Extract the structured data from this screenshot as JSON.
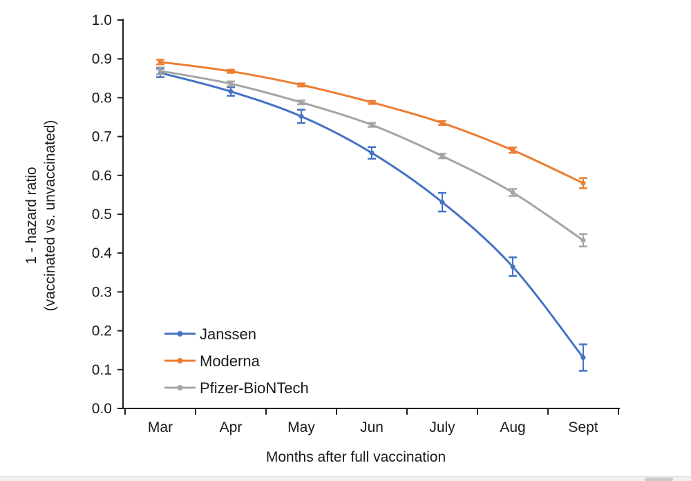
{
  "chart_data": {
    "type": "line",
    "title": "",
    "xlabel": "Months after full vaccination",
    "ylabel_line1": "1 - hazard ratio",
    "ylabel_line2": "(vaccinated vs. unvaccinated)",
    "categories": [
      "Mar",
      "Apr",
      "May",
      "Jun",
      "July",
      "Aug",
      "Sept"
    ],
    "ylim": [
      0.0,
      1.0
    ],
    "ytick_step": 0.1,
    "ytick_labels": [
      "0.0",
      "0.1",
      "0.2",
      "0.3",
      "0.4",
      "0.5",
      "0.6",
      "0.7",
      "0.8",
      "0.9",
      "1.0"
    ],
    "grid": false,
    "legend_position": "inside-lower-left",
    "legend_entries": [
      "Janssen",
      "Moderna",
      "Pfizer-BioNTech"
    ],
    "axis_color": "#1f1f1f",
    "series": [
      {
        "name": "Janssen",
        "color": "#4472C4",
        "values": [
          0.864,
          0.816,
          0.752,
          0.658,
          0.531,
          0.365,
          0.131
        ],
        "errors": [
          0.011,
          0.011,
          0.017,
          0.015,
          0.024,
          0.024,
          0.034
        ]
      },
      {
        "name": "Moderna",
        "color": "#ED7D31",
        "values": [
          0.892,
          0.868,
          0.833,
          0.788,
          0.735,
          0.665,
          0.58
        ],
        "errors": [
          0.006,
          0.004,
          0.004,
          0.004,
          0.005,
          0.007,
          0.013
        ]
      },
      {
        "name": "Pfizer-BioNTech",
        "color": "#A5A5A5",
        "values": [
          0.869,
          0.836,
          0.788,
          0.73,
          0.65,
          0.556,
          0.433
        ],
        "errors": [
          0.009,
          0.006,
          0.005,
          0.005,
          0.006,
          0.009,
          0.016
        ]
      }
    ]
  },
  "scrollbar": {
    "orientation": "horizontal"
  }
}
